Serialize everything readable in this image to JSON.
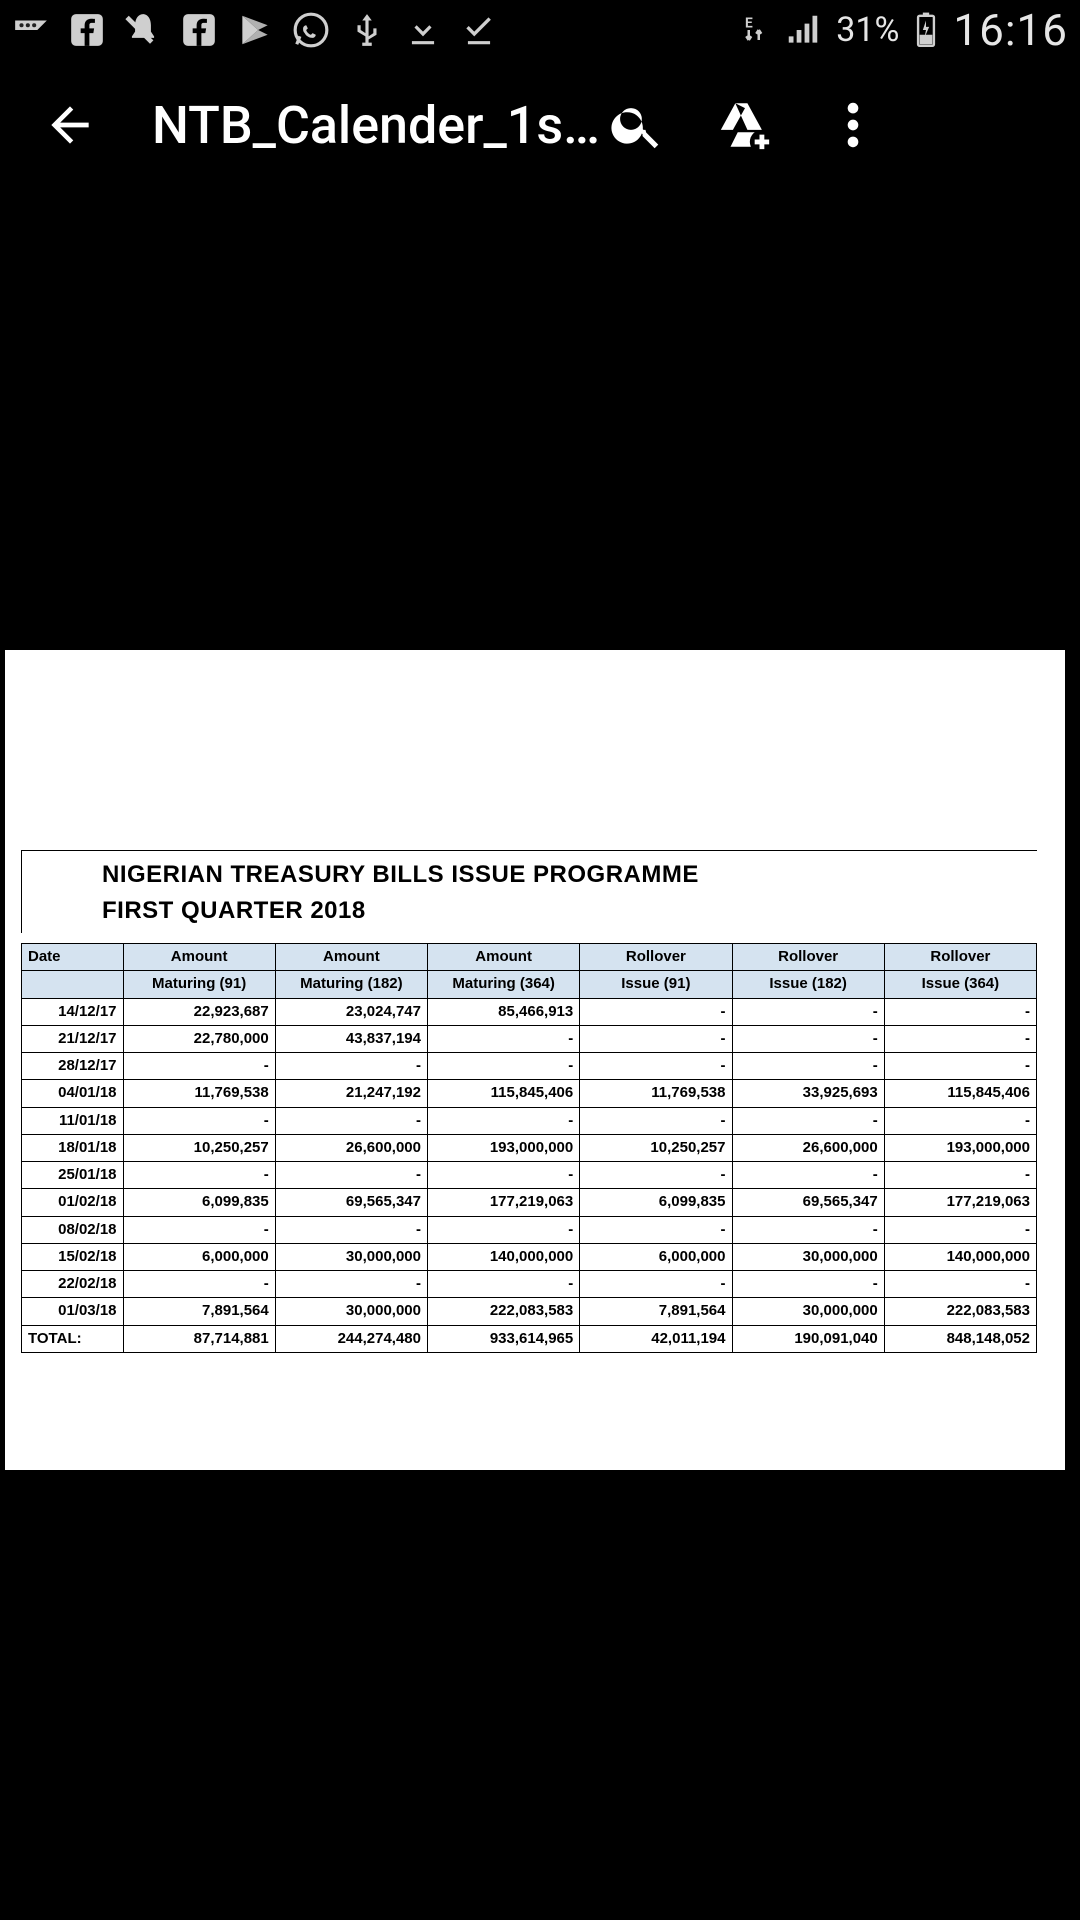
{
  "statusbar": {
    "battery_pct": "31%",
    "network_label": "E",
    "clock": "16:16"
  },
  "appbar": {
    "title": "NTB_Calender_1s…"
  },
  "document": {
    "title": "NIGERIAN TREASURY BILLS ISSUE PROGRAMME",
    "subtitle": "FIRST QUARTER 2018",
    "table": {
      "type": "table",
      "background_color": "#ffffff",
      "border_color": "#000000",
      "header_bg": "#d5e3f0",
      "font_family": "Arial",
      "header_fontsize": 15,
      "cell_fontsize": 15,
      "col_widths_pct": [
        10,
        15,
        15,
        15,
        15,
        15,
        15
      ],
      "header_row1": [
        "Date",
        "Amount",
        "Amount",
        "Amount",
        "Rollover",
        "Rollover",
        "Rollover"
      ],
      "header_row2": [
        "",
        "Maturing (91)",
        "Maturing (182)",
        "Maturing (364)",
        "Issue (91)",
        "Issue (182)",
        "Issue (364)"
      ],
      "rows": [
        [
          "14/12/17",
          "22,923,687",
          "23,024,747",
          "85,466,913",
          "-",
          "-",
          "-"
        ],
        [
          "21/12/17",
          "22,780,000",
          "43,837,194",
          "-",
          "-",
          "-",
          "-"
        ],
        [
          "28/12/17",
          "-",
          "-",
          "-",
          "-",
          "-",
          "-"
        ],
        [
          "04/01/18",
          "11,769,538",
          "21,247,192",
          "115,845,406",
          "11,769,538",
          "33,925,693",
          "115,845,406"
        ],
        [
          "11/01/18",
          "-",
          "-",
          "-",
          "-",
          "-",
          "-"
        ],
        [
          "18/01/18",
          "10,250,257",
          "26,600,000",
          "193,000,000",
          "10,250,257",
          "26,600,000",
          "193,000,000"
        ],
        [
          "25/01/18",
          "-",
          "-",
          "-",
          "-",
          "-",
          "-"
        ],
        [
          "01/02/18",
          "6,099,835",
          "69,565,347",
          "177,219,063",
          "6,099,835",
          "69,565,347",
          "177,219,063"
        ],
        [
          "08/02/18",
          "-",
          "-",
          "-",
          "-",
          "-",
          "-"
        ],
        [
          "15/02/18",
          "6,000,000",
          "30,000,000",
          "140,000,000",
          "6,000,000",
          "30,000,000",
          "140,000,000"
        ],
        [
          "22/02/18",
          "-",
          "-",
          "-",
          "-",
          "-",
          "-"
        ],
        [
          "01/03/18",
          "7,891,564",
          "30,000,000",
          "222,083,583",
          "7,891,564",
          "30,000,000",
          "222,083,583"
        ]
      ],
      "total_row": [
        "TOTAL:",
        "87,714,881",
        "244,274,480",
        "933,614,965",
        "42,011,194",
        "190,091,040",
        "848,148,052"
      ]
    }
  }
}
